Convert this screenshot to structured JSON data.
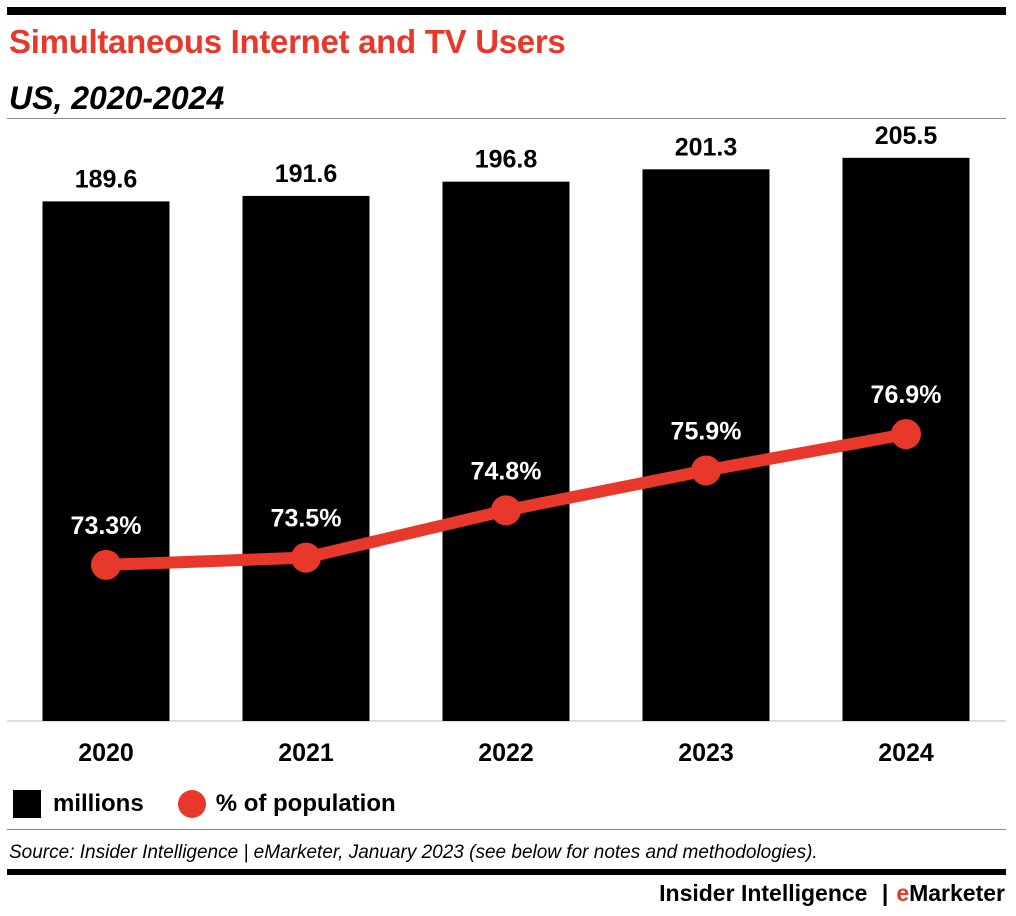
{
  "title": "Simultaneous Internet and TV Users",
  "subtitle": "US, 2020-2024",
  "colors": {
    "title": "#e8382b",
    "bars": "#000000",
    "line": "#e8382b",
    "rules": "#8a8a8a"
  },
  "legend": {
    "bars_label": "millions",
    "line_label": "% of population"
  },
  "source": "Source: Insider Intelligence | eMarketer, January 2023 (see below for notes and methodologies).",
  "brand": {
    "name": "Insider Intelligence",
    "separator": "|",
    "e": "e",
    "rest": "Marketer"
  },
  "chart_data": {
    "type": "bar",
    "categories": [
      "2020",
      "2021",
      "2022",
      "2023",
      "2024"
    ],
    "series": [
      {
        "name": "millions",
        "type": "bar",
        "values": [
          189.6,
          191.6,
          196.8,
          201.3,
          205.5
        ],
        "labels": [
          "189.6",
          "191.6",
          "196.8",
          "201.3",
          "205.5"
        ]
      },
      {
        "name": "% of population",
        "type": "line",
        "values": [
          73.3,
          73.5,
          74.8,
          75.9,
          76.9
        ],
        "labels": [
          "73.3%",
          "73.5%",
          "74.8%",
          "75.9%",
          "76.9%"
        ]
      }
    ],
    "title": "Simultaneous Internet and TV Users",
    "subtitle": "US, 2020-2024",
    "xlabel": "",
    "ylabel": "",
    "ylim": [
      0,
      212
    ],
    "line_ylim": [
      69,
      85
    ],
    "grid": false,
    "legend_position": "bottom-left"
  }
}
